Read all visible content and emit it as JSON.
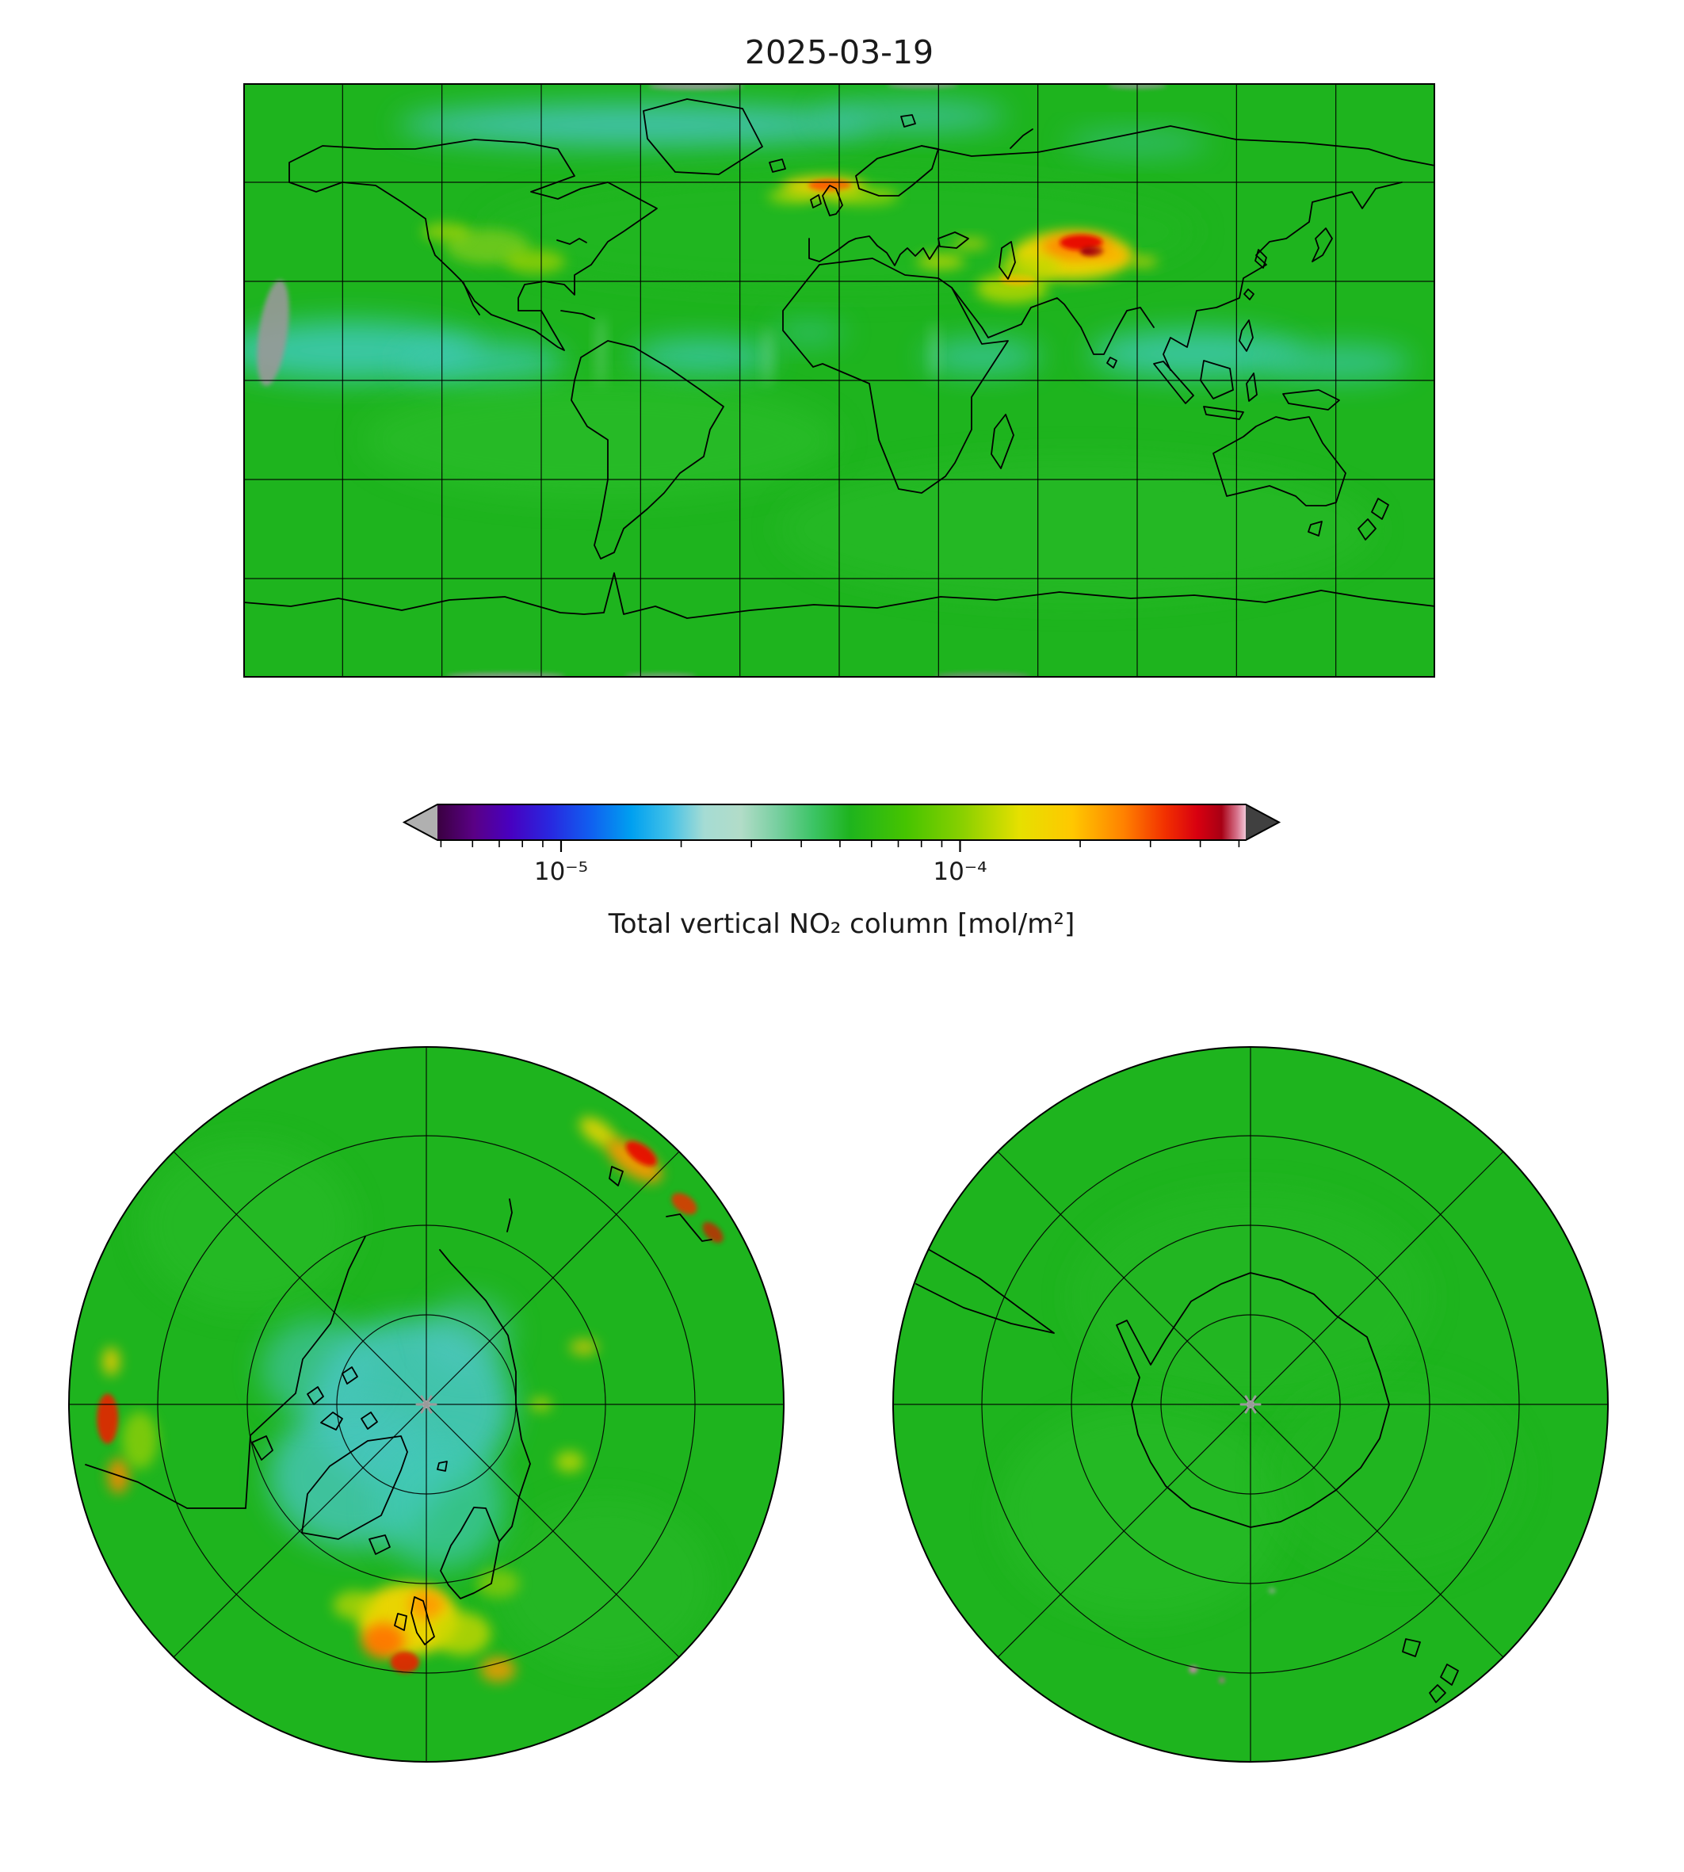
{
  "figure": {
    "title": "2025-03-19",
    "colorbar_label": "Total vertical NO₂ column [mol/m²]"
  },
  "chart_data": {
    "type": "heatmap",
    "title": "2025-03-19",
    "variable": "Total vertical NO₂ column",
    "units": "mol/m²",
    "scale": "log",
    "colorbar": {
      "label": "Total vertical NO₂ column [mol/m²]",
      "vmin": 4.9e-06,
      "vmax": 0.00052,
      "major_ticks": [
        1e-05,
        0.0001
      ],
      "tick_labels": [
        "10⁻⁵",
        "10⁻⁴"
      ],
      "minor_ticks": [
        5e-06,
        6e-06,
        7e-06,
        8e-06,
        9e-06,
        2e-05,
        3e-05,
        4e-05,
        5e-05,
        6e-05,
        7e-05,
        8e-05,
        9e-05,
        0.0002,
        0.0003,
        0.0004,
        0.0005
      ],
      "under_color": "#b0b0b0",
      "over_color": "#404040",
      "stops": [
        {
          "p": 0.0,
          "c": "#3a0040"
        },
        {
          "p": 0.045,
          "c": "#5a0085"
        },
        {
          "p": 0.09,
          "c": "#4800c0"
        },
        {
          "p": 0.14,
          "c": "#2828e0"
        },
        {
          "p": 0.19,
          "c": "#1060f0"
        },
        {
          "p": 0.24,
          "c": "#00a0f0"
        },
        {
          "p": 0.285,
          "c": "#40c0e8"
        },
        {
          "p": 0.33,
          "c": "#a5dcd4"
        },
        {
          "p": 0.375,
          "c": "#b2dcc8"
        },
        {
          "p": 0.42,
          "c": "#78cfa0"
        },
        {
          "p": 0.465,
          "c": "#3cc465"
        },
        {
          "p": 0.51,
          "c": "#1eb41e"
        },
        {
          "p": 0.58,
          "c": "#46c400"
        },
        {
          "p": 0.65,
          "c": "#8ad000"
        },
        {
          "p": 0.72,
          "c": "#e6e000"
        },
        {
          "p": 0.785,
          "c": "#ffc800"
        },
        {
          "p": 0.85,
          "c": "#ff8000"
        },
        {
          "p": 0.9,
          "c": "#f23000"
        },
        {
          "p": 0.94,
          "c": "#d80010"
        },
        {
          "p": 0.97,
          "c": "#a80014"
        },
        {
          "p": 0.99,
          "c": "#d87890"
        },
        {
          "p": 1.0,
          "c": "#f2c8d8"
        }
      ]
    },
    "notable_features": [
      {
        "region": "Eastern China (North China Plain)",
        "signal": "strong maximum",
        "approx_column_mol_m2": 0.0004
      },
      {
        "region": "Korea / Japan",
        "signal": "elevated",
        "approx_column_mol_m2": 0.00015
      },
      {
        "region": "Northern Europe",
        "signal": "elevated plume",
        "approx_column_mol_m2": 0.0002
      },
      {
        "region": "Northern India",
        "signal": "elevated",
        "approx_column_mol_m2": 0.00015
      },
      {
        "region": "Eastern United States",
        "signal": "slightly elevated",
        "approx_column_mol_m2": 0.0001
      },
      {
        "region": "Tropical oceans (equatorial band)",
        "signal": "minimum (cyan)",
        "approx_column_mol_m2": 2e-05
      },
      {
        "region": "Arctic Ocean",
        "signal": "low (cyan)",
        "approx_column_mol_m2": 3e-05
      },
      {
        "region": "Southern hemisphere / Antarctica",
        "signal": "uniform background green",
        "approx_column_mol_m2": 6e-05
      }
    ],
    "panels": {
      "global": {
        "projection": "equirectangular",
        "grid": {
          "lon_step_deg": 30,
          "lat_step_deg": 30
        },
        "base_color": "#1eb41e",
        "blobs": [
          {
            "x": 0.33,
            "y": 0.07,
            "rx": 0.2,
            "ry": 0.035,
            "c": "#46c4c0",
            "o": 0.85,
            "f": "soft"
          },
          {
            "x": 0.56,
            "y": 0.055,
            "rx": 0.08,
            "ry": 0.025,
            "c": "#46c4c0",
            "o": 0.7,
            "f": "soft"
          },
          {
            "x": 0.75,
            "y": 0.1,
            "rx": 0.06,
            "ry": 0.02,
            "c": "#46c4c0",
            "o": 0.5,
            "f": "soft"
          },
          {
            "x": 0.09,
            "y": 0.45,
            "rx": 0.11,
            "ry": 0.05,
            "c": "#3cc9b0",
            "o": 0.9,
            "f": "soft"
          },
          {
            "x": 0.2,
            "y": 0.47,
            "rx": 0.07,
            "ry": 0.035,
            "c": "#3cc9b0",
            "o": 0.8,
            "f": "soft"
          },
          {
            "x": 0.385,
            "y": 0.46,
            "rx": 0.06,
            "ry": 0.03,
            "c": "#3cc9b0",
            "o": 0.8,
            "f": "soft"
          },
          {
            "x": 0.475,
            "y": 0.42,
            "rx": 0.03,
            "ry": 0.02,
            "c": "#3cc9b0",
            "o": 0.5,
            "f": "soft"
          },
          {
            "x": 0.62,
            "y": 0.46,
            "rx": 0.05,
            "ry": 0.028,
            "c": "#3cc9b0",
            "o": 0.75,
            "f": "soft"
          },
          {
            "x": 0.8,
            "y": 0.455,
            "rx": 0.09,
            "ry": 0.04,
            "c": "#3cc9b0",
            "o": 0.85,
            "f": "soft"
          },
          {
            "x": 0.92,
            "y": 0.47,
            "rx": 0.06,
            "ry": 0.03,
            "c": "#3cc9b0",
            "o": 0.7,
            "f": "soft"
          },
          {
            "x": 0.3,
            "y": 0.6,
            "rx": 0.2,
            "ry": 0.1,
            "c": "#2fc12f",
            "o": 0.5,
            "f": "soft"
          },
          {
            "x": 0.7,
            "y": 0.75,
            "rx": 0.25,
            "ry": 0.12,
            "c": "#2abc2a",
            "o": 0.5,
            "f": "soft"
          },
          {
            "x": 0.5,
            "y": 0.25,
            "rx": 0.3,
            "ry": 0.1,
            "c": "#24b824",
            "o": 0.5,
            "f": "soft"
          },
          {
            "x": 0.205,
            "y": 0.275,
            "rx": 0.035,
            "ry": 0.03,
            "c": "#7ccc1e",
            "o": 0.8,
            "f": "med"
          },
          {
            "x": 0.245,
            "y": 0.3,
            "rx": 0.025,
            "ry": 0.02,
            "c": "#a8d400",
            "o": 0.7,
            "f": "med"
          },
          {
            "x": 0.17,
            "y": 0.25,
            "rx": 0.02,
            "ry": 0.015,
            "c": "#c8dc00",
            "o": 0.6,
            "f": "med"
          },
          {
            "x": 0.487,
            "y": 0.175,
            "rx": 0.035,
            "ry": 0.018,
            "c": "#ffd000",
            "o": 0.9,
            "f": "med"
          },
          {
            "x": 0.492,
            "y": 0.172,
            "rx": 0.018,
            "ry": 0.01,
            "c": "#ff5500",
            "o": 0.9,
            "f": "hard"
          },
          {
            "x": 0.52,
            "y": 0.19,
            "rx": 0.03,
            "ry": 0.015,
            "c": "#b0d800",
            "o": 0.7,
            "f": "med"
          },
          {
            "x": 0.46,
            "y": 0.19,
            "rx": 0.02,
            "ry": 0.012,
            "c": "#c0dc00",
            "o": 0.7,
            "f": "med"
          },
          {
            "x": 0.585,
            "y": 0.3,
            "rx": 0.02,
            "ry": 0.013,
            "c": "#d8dc00",
            "o": 0.7,
            "f": "med"
          },
          {
            "x": 0.61,
            "y": 0.27,
            "rx": 0.015,
            "ry": 0.01,
            "c": "#e0d800",
            "o": 0.6,
            "f": "med"
          },
          {
            "x": 0.645,
            "y": 0.345,
            "rx": 0.03,
            "ry": 0.025,
            "c": "#b8d800",
            "o": 0.85,
            "f": "med"
          },
          {
            "x": 0.65,
            "y": 0.33,
            "rx": 0.015,
            "ry": 0.01,
            "c": "#ffb000",
            "o": 0.8,
            "f": "hard"
          },
          {
            "x": 0.695,
            "y": 0.29,
            "rx": 0.05,
            "ry": 0.04,
            "c": "#ffd800",
            "o": 0.9,
            "f": "med"
          },
          {
            "x": 0.7,
            "y": 0.275,
            "rx": 0.03,
            "ry": 0.022,
            "c": "#ff8800",
            "o": 0.95,
            "f": "med"
          },
          {
            "x": 0.703,
            "y": 0.268,
            "rx": 0.018,
            "ry": 0.013,
            "c": "#e81000",
            "o": 1,
            "f": "hard"
          },
          {
            "x": 0.712,
            "y": 0.283,
            "rx": 0.01,
            "ry": 0.008,
            "c": "#a00010",
            "o": 1,
            "f": "hard"
          },
          {
            "x": 0.66,
            "y": 0.31,
            "rx": 0.025,
            "ry": 0.02,
            "c": "#c0d800",
            "o": 0.8,
            "f": "med"
          },
          {
            "x": 0.73,
            "y": 0.29,
            "rx": 0.015,
            "ry": 0.012,
            "c": "#ffaa00",
            "o": 0.8,
            "f": "med"
          },
          {
            "x": 0.755,
            "y": 0.3,
            "rx": 0.012,
            "ry": 0.009,
            "c": "#e8d800",
            "o": 0.7,
            "f": "med"
          },
          {
            "x": 0.3,
            "y": 0.45,
            "rx": 0.004,
            "ry": 0.06,
            "c": "#bbeedd",
            "o": 0.3,
            "f": "med"
          },
          {
            "x": 0.44,
            "y": 0.46,
            "rx": 0.004,
            "ry": 0.05,
            "c": "#bbeedd",
            "o": 0.3,
            "f": "med"
          },
          {
            "x": 0.58,
            "y": 0.45,
            "rx": 0.004,
            "ry": 0.05,
            "c": "#bbeedd",
            "o": 0.25,
            "f": "med"
          },
          {
            "x": 0.025,
            "y": 0.42,
            "rx": 0.012,
            "ry": 0.09,
            "c": "#999999",
            "o": 0.9,
            "f": "hard",
            "rot": 8
          },
          {
            "x": 0.38,
            "y": 0.005,
            "rx": 0.04,
            "ry": 0.006,
            "c": "#999999",
            "o": 0.9,
            "f": "hard"
          },
          {
            "x": 0.57,
            "y": 0.003,
            "rx": 0.03,
            "ry": 0.005,
            "c": "#999999",
            "o": 0.8,
            "f": "hard"
          },
          {
            "x": 0.75,
            "y": 0.004,
            "rx": 0.025,
            "ry": 0.005,
            "c": "#999999",
            "o": 0.8,
            "f": "hard"
          },
          {
            "x": 0.22,
            "y": 0.997,
            "rx": 0.05,
            "ry": 0.005,
            "c": "#999999",
            "o": 0.9,
            "f": "hard"
          },
          {
            "x": 0.35,
            "y": 0.997,
            "rx": 0.03,
            "ry": 0.004,
            "c": "#999999",
            "o": 0.8,
            "f": "hard"
          },
          {
            "x": 0.62,
            "y": 0.997,
            "rx": 0.04,
            "ry": 0.005,
            "c": "#888888",
            "o": 0.8,
            "f": "hard"
          }
        ]
      },
      "north_pole": {
        "projection": "north polar stereographic",
        "grid": {
          "circle_fractions": [
            0.25,
            0.5,
            0.75
          ],
          "spoke_angles_deg": [
            0,
            45,
            90,
            135
          ]
        },
        "base_color": "#1eb41e",
        "blobs": [
          {
            "x": 0.25,
            "y": 0.25,
            "rx": 0.15,
            "ry": 0.12,
            "c": "#2cbe2c",
            "o": 0.5,
            "f": "soft"
          },
          {
            "x": 0.75,
            "y": 0.75,
            "rx": 0.15,
            "ry": 0.12,
            "c": "#29ba29",
            "o": 0.5,
            "f": "soft"
          },
          {
            "x": 0.48,
            "y": 0.5,
            "rx": 0.14,
            "ry": 0.12,
            "c": "#46c6bc",
            "o": 0.9,
            "f": "soft"
          },
          {
            "x": 0.4,
            "y": 0.6,
            "rx": 0.12,
            "ry": 0.1,
            "c": "#46c6bc",
            "o": 0.8,
            "f": "soft"
          },
          {
            "x": 0.52,
            "y": 0.64,
            "rx": 0.09,
            "ry": 0.09,
            "c": "#3fc9b4",
            "o": 0.7,
            "f": "soft"
          },
          {
            "x": 0.35,
            "y": 0.45,
            "rx": 0.08,
            "ry": 0.07,
            "c": "#46c6bc",
            "o": 0.6,
            "f": "soft"
          },
          {
            "x": 0.56,
            "y": 0.4,
            "rx": 0.06,
            "ry": 0.05,
            "c": "#52c8c8",
            "o": 0.5,
            "f": "soft"
          },
          {
            "x": 0.475,
            "y": 0.8,
            "rx": 0.07,
            "ry": 0.05,
            "c": "#ffd800",
            "o": 0.9,
            "f": "med"
          },
          {
            "x": 0.44,
            "y": 0.83,
            "rx": 0.03,
            "ry": 0.025,
            "c": "#ff7700",
            "o": 0.95,
            "f": "med"
          },
          {
            "x": 0.5,
            "y": 0.78,
            "rx": 0.025,
            "ry": 0.02,
            "c": "#ff9900",
            "o": 0.9,
            "f": "med"
          },
          {
            "x": 0.47,
            "y": 0.86,
            "rx": 0.02,
            "ry": 0.015,
            "c": "#e82000",
            "o": 0.9,
            "f": "hard"
          },
          {
            "x": 0.55,
            "y": 0.82,
            "rx": 0.04,
            "ry": 0.03,
            "c": "#c8d800",
            "o": 0.8,
            "f": "med"
          },
          {
            "x": 0.4,
            "y": 0.78,
            "rx": 0.03,
            "ry": 0.02,
            "c": "#c8d800",
            "o": 0.7,
            "f": "med"
          },
          {
            "x": 0.6,
            "y": 0.75,
            "rx": 0.03,
            "ry": 0.02,
            "c": "#a8d400",
            "o": 0.6,
            "f": "med"
          },
          {
            "x": 0.6,
            "y": 0.87,
            "rx": 0.025,
            "ry": 0.018,
            "c": "#ff9900",
            "o": 0.8,
            "f": "med"
          },
          {
            "x": 0.7,
            "y": 0.58,
            "rx": 0.02,
            "ry": 0.015,
            "c": "#d8dc00",
            "o": 0.7,
            "f": "med"
          },
          {
            "x": 0.66,
            "y": 0.5,
            "rx": 0.015,
            "ry": 0.01,
            "c": "#e8d800",
            "o": 0.6,
            "f": "med"
          },
          {
            "x": 0.72,
            "y": 0.42,
            "rx": 0.02,
            "ry": 0.012,
            "c": "#ffcc00",
            "o": 0.6,
            "f": "med"
          },
          {
            "x": 0.74,
            "y": 0.12,
            "rx": 0.03,
            "ry": 0.015,
            "c": "#ffd800",
            "o": 0.8,
            "f": "med",
            "rot": 35
          },
          {
            "x": 0.79,
            "y": 0.16,
            "rx": 0.045,
            "ry": 0.02,
            "c": "#ff9900",
            "o": 0.9,
            "f": "med",
            "rot": 35
          },
          {
            "x": 0.8,
            "y": 0.15,
            "rx": 0.025,
            "ry": 0.012,
            "c": "#e81000",
            "o": 0.95,
            "f": "hard",
            "rot": 35
          },
          {
            "x": 0.86,
            "y": 0.22,
            "rx": 0.02,
            "ry": 0.012,
            "c": "#e83000",
            "o": 0.85,
            "f": "hard",
            "rot": 35
          },
          {
            "x": 0.9,
            "y": 0.26,
            "rx": 0.018,
            "ry": 0.01,
            "c": "#cc2000",
            "o": 0.8,
            "f": "hard",
            "rot": 45
          },
          {
            "x": 0.055,
            "y": 0.52,
            "rx": 0.015,
            "ry": 0.035,
            "c": "#e82000",
            "o": 0.9,
            "f": "hard"
          },
          {
            "x": 0.07,
            "y": 0.6,
            "rx": 0.015,
            "ry": 0.025,
            "c": "#ff8800",
            "o": 0.85,
            "f": "med"
          },
          {
            "x": 0.06,
            "y": 0.44,
            "rx": 0.012,
            "ry": 0.02,
            "c": "#ffcc00",
            "o": 0.8,
            "f": "med"
          },
          {
            "x": 0.1,
            "y": 0.55,
            "rx": 0.025,
            "ry": 0.04,
            "c": "#b8d800",
            "o": 0.6,
            "f": "med"
          }
        ]
      },
      "south_pole": {
        "projection": "south polar stereographic",
        "grid": {
          "circle_fractions": [
            0.25,
            0.5,
            0.75
          ],
          "spoke_angles_deg": [
            0,
            45,
            90,
            135
          ]
        },
        "base_color": "#1eb41e",
        "blobs": [
          {
            "x": 0.5,
            "y": 0.35,
            "rx": 0.25,
            "ry": 0.15,
            "c": "#25b925",
            "o": 0.5,
            "f": "soft"
          },
          {
            "x": 0.35,
            "y": 0.65,
            "rx": 0.2,
            "ry": 0.15,
            "c": "#2cbe2c",
            "o": 0.5,
            "f": "soft"
          },
          {
            "x": 0.7,
            "y": 0.6,
            "rx": 0.18,
            "ry": 0.14,
            "c": "#23b723",
            "o": 0.5,
            "f": "soft"
          },
          {
            "x": 0.42,
            "y": 0.87,
            "rx": 0.006,
            "ry": 0.005,
            "c": "#e080c0",
            "o": 0.9,
            "f": "hard"
          },
          {
            "x": 0.46,
            "y": 0.885,
            "rx": 0.004,
            "ry": 0.004,
            "c": "#cc66aa",
            "o": 0.8,
            "f": "hard"
          },
          {
            "x": 0.53,
            "y": 0.76,
            "rx": 0.005,
            "ry": 0.004,
            "c": "#aaaaaa",
            "o": 0.7,
            "f": "hard"
          }
        ]
      }
    }
  }
}
